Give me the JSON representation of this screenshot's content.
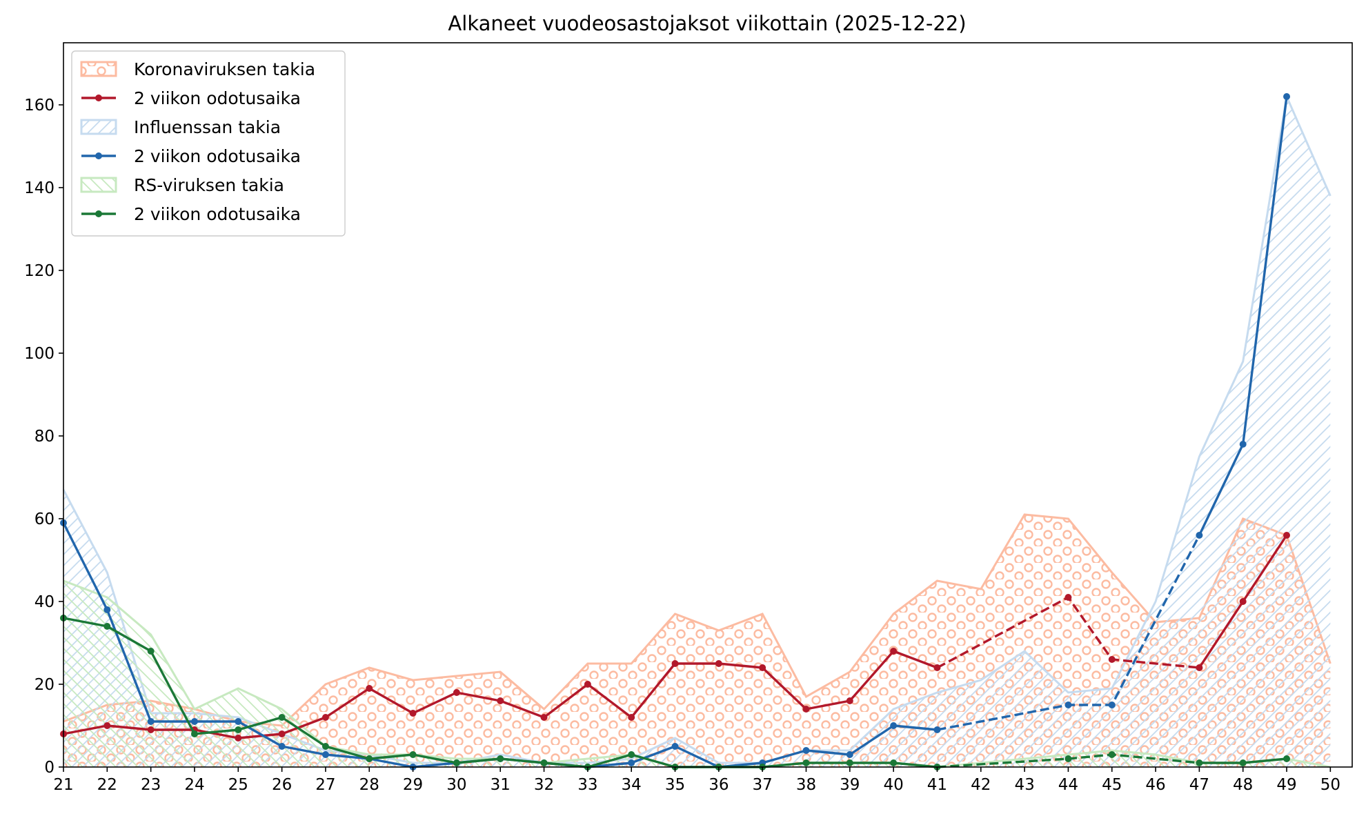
{
  "chart_data": {
    "type": "area",
    "title": "Alkaneet vuodeosastojaksot viikottain (2025-12-22)",
    "xlabel": "",
    "ylabel": "",
    "x": [
      21,
      22,
      23,
      24,
      25,
      26,
      27,
      28,
      29,
      30,
      31,
      32,
      33,
      34,
      35,
      36,
      37,
      38,
      39,
      40,
      41,
      42,
      43,
      44,
      45,
      46,
      47,
      48,
      49,
      50
    ],
    "xlim": [
      21,
      50.5
    ],
    "ylim": [
      0,
      175
    ],
    "yticks": [
      0,
      20,
      40,
      60,
      80,
      100,
      120,
      140,
      160
    ],
    "grid": false,
    "legend_position": "top-left",
    "areas": [
      {
        "name": "Koronaviruksen takia",
        "color": "#fcbba1",
        "hatch": "circles",
        "values": [
          11,
          15,
          16,
          14,
          11,
          10,
          20,
          24,
          21,
          22,
          23,
          14,
          25,
          25,
          37,
          33,
          37,
          17,
          23,
          37,
          45,
          43,
          61,
          60,
          47,
          35,
          36,
          60,
          56,
          25
        ]
      },
      {
        "name": "Influenssan takia",
        "color": "#c6dbef",
        "hatch": "diagonal",
        "values": [
          67,
          47,
          13,
          13,
          12,
          8,
          4,
          3,
          1,
          1,
          3,
          1,
          1,
          2,
          7,
          1,
          1,
          4,
          4,
          14,
          18,
          21,
          28,
          18,
          19,
          40,
          75,
          98,
          162,
          138
        ]
      },
      {
        "name": "RS-viruksen takia",
        "color": "#c7e9c0",
        "hatch": "backdiagonal",
        "values": [
          45,
          41,
          32,
          14,
          19,
          14,
          5,
          3,
          3,
          2,
          2,
          1,
          2,
          3,
          0,
          0,
          0,
          1,
          1,
          1,
          0,
          1,
          2,
          3,
          4,
          3,
          1,
          1,
          2,
          0
        ]
      }
    ],
    "lines": [
      {
        "name": "2 viikon odotusaika",
        "color": "#b2182b",
        "solid": [
          [
            21,
            8
          ],
          [
            22,
            10
          ],
          [
            23,
            9
          ],
          [
            24,
            9
          ],
          [
            25,
            7
          ],
          [
            26,
            8
          ],
          [
            27,
            12
          ],
          [
            28,
            19
          ],
          [
            29,
            13
          ],
          [
            30,
            18
          ],
          [
            31,
            16
          ],
          [
            32,
            12
          ],
          [
            33,
            20
          ],
          [
            34,
            12
          ],
          [
            35,
            25
          ],
          [
            36,
            25
          ],
          [
            37,
            24
          ],
          [
            38,
            14
          ],
          [
            39,
            16
          ],
          [
            40,
            28
          ],
          [
            41,
            24
          ]
        ],
        "dashed": [
          [
            41,
            24
          ],
          [
            44,
            41
          ],
          [
            45,
            26
          ],
          [
            47,
            24
          ]
        ],
        "solid_tail": [
          [
            47,
            24
          ],
          [
            48,
            40
          ],
          [
            49,
            56
          ]
        ],
        "markers": [
          [
            21,
            8
          ],
          [
            22,
            10
          ],
          [
            23,
            9
          ],
          [
            24,
            9
          ],
          [
            25,
            7
          ],
          [
            26,
            8
          ],
          [
            27,
            12
          ],
          [
            28,
            19
          ],
          [
            29,
            13
          ],
          [
            30,
            18
          ],
          [
            31,
            16
          ],
          [
            32,
            12
          ],
          [
            33,
            20
          ],
          [
            34,
            12
          ],
          [
            35,
            25
          ],
          [
            36,
            25
          ],
          [
            37,
            24
          ],
          [
            38,
            14
          ],
          [
            39,
            16
          ],
          [
            40,
            28
          ],
          [
            41,
            24
          ],
          [
            44,
            41
          ],
          [
            45,
            26
          ],
          [
            47,
            24
          ],
          [
            48,
            40
          ],
          [
            49,
            56
          ]
        ]
      },
      {
        "name": "2 viikon odotusaika",
        "color": "#2166ac",
        "solid": [
          [
            21,
            59
          ],
          [
            22,
            38
          ],
          [
            23,
            11
          ],
          [
            24,
            11
          ],
          [
            25,
            11
          ],
          [
            26,
            5
          ],
          [
            27,
            3
          ],
          [
            28,
            2
          ],
          [
            29,
            0
          ],
          [
            30,
            1
          ],
          [
            31,
            2
          ],
          [
            32,
            1
          ],
          [
            33,
            0
          ],
          [
            34,
            1
          ],
          [
            35,
            5
          ],
          [
            36,
            0
          ],
          [
            37,
            1
          ],
          [
            38,
            4
          ],
          [
            39,
            3
          ],
          [
            40,
            10
          ],
          [
            41,
            9
          ]
        ],
        "dashed": [
          [
            41,
            9
          ],
          [
            44,
            15
          ],
          [
            45,
            15
          ],
          [
            47,
            56
          ]
        ],
        "solid_tail": [
          [
            47,
            56
          ],
          [
            48,
            78
          ],
          [
            49,
            162
          ]
        ],
        "markers": [
          [
            21,
            59
          ],
          [
            22,
            38
          ],
          [
            23,
            11
          ],
          [
            24,
            11
          ],
          [
            25,
            11
          ],
          [
            26,
            5
          ],
          [
            27,
            3
          ],
          [
            28,
            2
          ],
          [
            29,
            0
          ],
          [
            30,
            1
          ],
          [
            31,
            2
          ],
          [
            32,
            1
          ],
          [
            33,
            0
          ],
          [
            34,
            1
          ],
          [
            35,
            5
          ],
          [
            36,
            0
          ],
          [
            37,
            1
          ],
          [
            38,
            4
          ],
          [
            39,
            3
          ],
          [
            40,
            10
          ],
          [
            41,
            9
          ],
          [
            44,
            15
          ],
          [
            45,
            15
          ],
          [
            47,
            56
          ],
          [
            48,
            78
          ],
          [
            49,
            162
          ]
        ]
      },
      {
        "name": "2 viikon odotusaika",
        "color": "#1b7837",
        "solid": [
          [
            21,
            36
          ],
          [
            22,
            34
          ],
          [
            23,
            28
          ],
          [
            24,
            8
          ],
          [
            25,
            9
          ],
          [
            26,
            12
          ],
          [
            27,
            5
          ],
          [
            28,
            2
          ],
          [
            29,
            3
          ],
          [
            30,
            1
          ],
          [
            31,
            2
          ],
          [
            32,
            1
          ],
          [
            33,
            0
          ],
          [
            34,
            3
          ],
          [
            35,
            0
          ],
          [
            36,
            0
          ],
          [
            37,
            0
          ],
          [
            38,
            1
          ],
          [
            39,
            1
          ],
          [
            40,
            1
          ],
          [
            41,
            0
          ]
        ],
        "dashed": [
          [
            41,
            0
          ],
          [
            44,
            2
          ],
          [
            45,
            3
          ],
          [
            47,
            1
          ]
        ],
        "solid_tail": [
          [
            47,
            1
          ],
          [
            48,
            1
          ],
          [
            49,
            2
          ]
        ],
        "markers": [
          [
            21,
            36
          ],
          [
            22,
            34
          ],
          [
            23,
            28
          ],
          [
            24,
            8
          ],
          [
            25,
            9
          ],
          [
            26,
            12
          ],
          [
            27,
            5
          ],
          [
            28,
            2
          ],
          [
            29,
            3
          ],
          [
            30,
            1
          ],
          [
            31,
            2
          ],
          [
            32,
            1
          ],
          [
            33,
            0
          ],
          [
            34,
            3
          ],
          [
            35,
            0
          ],
          [
            36,
            0
          ],
          [
            37,
            0
          ],
          [
            38,
            1
          ],
          [
            39,
            1
          ],
          [
            40,
            1
          ],
          [
            41,
            0
          ],
          [
            44,
            2
          ],
          [
            45,
            3
          ],
          [
            47,
            1
          ],
          [
            48,
            1
          ],
          [
            49,
            2
          ]
        ]
      }
    ],
    "legend": [
      {
        "label": "Koronaviruksen takia",
        "kind": "area",
        "ref": 0
      },
      {
        "label": "2 viikon odotusaika",
        "kind": "line",
        "ref": 0
      },
      {
        "label": "Influenssan takia",
        "kind": "area",
        "ref": 1
      },
      {
        "label": "2 viikon odotusaika",
        "kind": "line",
        "ref": 1
      },
      {
        "label": "RS-viruksen takia",
        "kind": "area",
        "ref": 2
      },
      {
        "label": "2 viikon odotusaika",
        "kind": "line",
        "ref": 2
      }
    ]
  }
}
